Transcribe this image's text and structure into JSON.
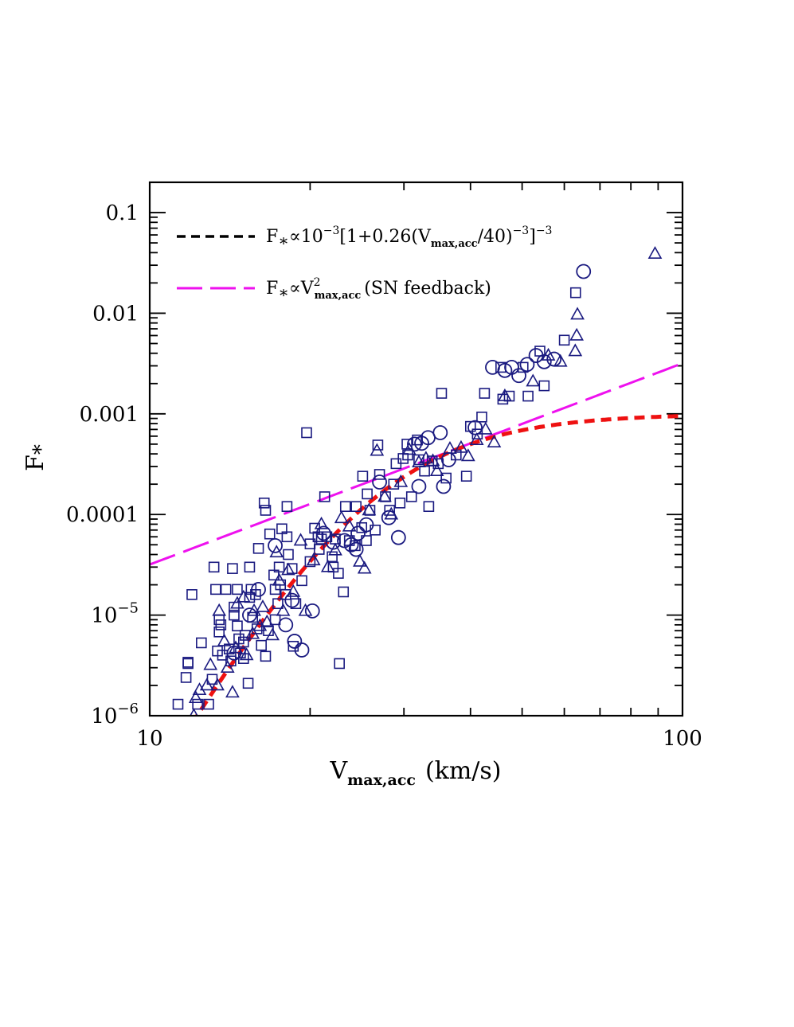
{
  "chart_data": {
    "type": "scatter",
    "title": "",
    "xlabel": {
      "main": "V",
      "sub": "max,acc",
      "units": "(km/s)"
    },
    "ylabel": {
      "main": "F",
      "sub": "*"
    },
    "x_scale": "log",
    "y_scale": "log",
    "xlim": [
      10,
      100
    ],
    "ylim": [
      1e-06,
      0.2
    ],
    "x_tick_labels": [
      {
        "value": 10,
        "label": "10"
      },
      {
        "value": 100,
        "label": "100"
      }
    ],
    "y_tick_labels": [
      {
        "value": 1e-06,
        "base": "10",
        "exp": "−6"
      },
      {
        "value": 1e-05,
        "base": "10",
        "exp": "−5"
      },
      {
        "value": 0.0001,
        "label": "0.0001"
      },
      {
        "value": 0.001,
        "label": "0.001"
      },
      {
        "value": 0.01,
        "label": "0.01"
      },
      {
        "value": 0.1,
        "label": "0.1"
      }
    ],
    "legend_position": "top-left",
    "legend": [
      {
        "style": "black-dashed",
        "parts": [
          "F",
          "∗",
          "∝10",
          "−3",
          "[1+0.26(V",
          "max,acc",
          "/40)",
          "−3",
          "]",
          "−3"
        ]
      },
      {
        "style": "magenta-long-dashed",
        "parts": [
          "F",
          "∗",
          "∝V",
          "2",
          "max,acc",
          "(SN feedback)"
        ]
      }
    ],
    "colors": {
      "points": "#1a1a80",
      "fit_curve": "#ee1111",
      "sn_line": "#ee11ee",
      "axis": "#000000"
    },
    "series": [
      {
        "marker": "square",
        "points": [
          [
            11.3,
            1.3e-06
          ],
          [
            11.7,
            2.4e-06
          ],
          [
            11.8,
            3.4e-06
          ],
          [
            11.8,
            3.3e-06
          ],
          [
            12,
            1.6e-05
          ],
          [
            12.3,
            1.3e-06
          ],
          [
            12.5,
            5.3e-06
          ],
          [
            12.9,
            1.3e-06
          ],
          [
            13.1,
            2.3e-06
          ],
          [
            13.2,
            3e-05
          ],
          [
            13.3,
            1.8e-05
          ],
          [
            13.4,
            4.4e-06
          ],
          [
            13.5,
            9e-06
          ],
          [
            13.5,
            6.8e-06
          ],
          [
            13.6,
            8e-06
          ],
          [
            13.7,
            4e-06
          ],
          [
            13.9,
            1.8e-05
          ],
          [
            14.1,
            4.6e-06
          ],
          [
            14.2,
            3.5e-06
          ],
          [
            14.3,
            2.9e-05
          ],
          [
            14.4,
            1.2e-05
          ],
          [
            14.4,
            1e-05
          ],
          [
            14.6,
            1.8e-05
          ],
          [
            14.6,
            7.8e-06
          ],
          [
            14.7,
            5.8e-06
          ],
          [
            14.8,
            4.2e-06
          ],
          [
            15,
            3.7e-06
          ],
          [
            15,
            5.4e-06
          ],
          [
            15.1,
            6.3e-06
          ],
          [
            15.3,
            2.1e-06
          ],
          [
            15.4,
            3e-05
          ],
          [
            15.4,
            1.5e-05
          ],
          [
            15.5,
            1.8e-05
          ],
          [
            15.6,
            9.5e-06
          ],
          [
            15.8,
            1.6e-05
          ],
          [
            15.9,
            7.3e-06
          ],
          [
            16,
            4.6e-05
          ],
          [
            16.2,
            5e-06
          ],
          [
            16.4,
            0.00013
          ],
          [
            16.5,
            3.9e-06
          ],
          [
            16.5,
            0.00011
          ],
          [
            16.7,
            7e-06
          ],
          [
            16.8,
            6.4e-05
          ],
          [
            17.1,
            2.5e-05
          ],
          [
            17.2,
            1.8e-05
          ],
          [
            17.2,
            9e-06
          ],
          [
            17.4,
            1.3e-05
          ],
          [
            17.5,
            3e-05
          ],
          [
            17.6,
            2e-05
          ],
          [
            17.7,
            7.2e-05
          ],
          [
            18,
            1.6e-05
          ],
          [
            18.1,
            0.00012
          ],
          [
            18.1,
            6e-05
          ],
          [
            18.2,
            4e-05
          ],
          [
            18.5,
            2.9e-05
          ],
          [
            18.6,
            4.9e-06
          ],
          [
            18.8,
            1.3e-05
          ],
          [
            19.3,
            2.2e-05
          ],
          [
            19.7,
            0.00065
          ],
          [
            20,
            5.1e-05
          ],
          [
            20,
            3.4e-05
          ],
          [
            20.4,
            7.3e-05
          ],
          [
            20.7,
            6e-05
          ],
          [
            20.8,
            4.5e-05
          ],
          [
            21,
            5.7e-05
          ],
          [
            21.3,
            0.00015
          ],
          [
            21.5,
            6e-05
          ],
          [
            22,
            3.8e-05
          ],
          [
            22.1,
            3e-05
          ],
          [
            22.3,
            5.7e-05
          ],
          [
            22.6,
            2.6e-05
          ],
          [
            22.7,
            3.3e-06
          ],
          [
            23.1,
            1.7e-05
          ],
          [
            23.3,
            0.00012
          ],
          [
            23.7,
            5.5e-05
          ],
          [
            24.3,
            4.9e-05
          ],
          [
            24.4,
            0.00012
          ],
          [
            25,
            7.4e-05
          ],
          [
            25.1,
            0.00024
          ],
          [
            25.5,
            5.5e-05
          ],
          [
            25.6,
            0.00016
          ],
          [
            25.9,
            0.00011
          ],
          [
            26.5,
            7e-05
          ],
          [
            26.8,
            0.00049
          ],
          [
            27,
            0.00025
          ],
          [
            27.7,
            0.00015
          ],
          [
            28.2,
            0.00011
          ],
          [
            28.7,
            0.0002
          ],
          [
            29,
            0.00032
          ],
          [
            29.5,
            0.00013
          ],
          [
            29.9,
            0.00036
          ],
          [
            30.4,
            0.0005
          ],
          [
            30.5,
            0.00039
          ],
          [
            31,
            0.00015
          ],
          [
            31.8,
            0.00055
          ],
          [
            32,
            0.00035
          ],
          [
            32.8,
            0.00027
          ],
          [
            33.4,
            0.00012
          ],
          [
            33.9,
            0.00034
          ],
          [
            34.8,
            0.00032
          ],
          [
            35.3,
            0.0016
          ],
          [
            36,
            0.00023
          ],
          [
            37.6,
            0.00039
          ],
          [
            39.3,
            0.00024
          ],
          [
            40,
            0.00075
          ],
          [
            41.2,
            0.00063
          ],
          [
            42,
            0.00093
          ],
          [
            42.5,
            0.0016
          ],
          [
            45.6,
            0.0029
          ],
          [
            46,
            0.0014
          ],
          [
            47.3,
            0.0015
          ],
          [
            50.2,
            0.0029
          ],
          [
            51.3,
            0.0015
          ],
          [
            54,
            0.0042
          ],
          [
            55,
            0.0019
          ],
          [
            60,
            0.0054
          ],
          [
            63,
            0.016
          ]
        ]
      },
      {
        "marker": "triangle",
        "points": [
          [
            12.1,
            1e-06
          ],
          [
            12.2,
            1.5e-06
          ],
          [
            12.4,
            1.8e-06
          ],
          [
            12.8,
            2e-06
          ],
          [
            13,
            3.2e-06
          ],
          [
            13.4,
            2e-06
          ],
          [
            13.5,
            1.1e-05
          ],
          [
            13.8,
            5.5e-06
          ],
          [
            14,
            3e-06
          ],
          [
            14.3,
            1.7e-06
          ],
          [
            14.5,
            4.7e-06
          ],
          [
            14.6,
            1.3e-05
          ],
          [
            15,
            1.5e-05
          ],
          [
            15.2,
            4e-06
          ],
          [
            15.6,
            6.5e-06
          ],
          [
            15.7,
            1.1e-05
          ],
          [
            16.1,
            7.8e-06
          ],
          [
            16.3,
            1.2e-05
          ],
          [
            16.6,
            8.5e-06
          ],
          [
            17,
            6.3e-06
          ],
          [
            17.3,
            4.2e-05
          ],
          [
            17.5,
            2.2e-05
          ],
          [
            17.8,
            1.1e-05
          ],
          [
            18.2,
            2.8e-05
          ],
          [
            18.6,
            1.7e-05
          ],
          [
            19.2,
            5.5e-05
          ],
          [
            19.6,
            1.1e-05
          ],
          [
            20.3,
            3.5e-05
          ],
          [
            21,
            8e-05
          ],
          [
            21.6,
            3e-05
          ],
          [
            22.3,
            4.4e-05
          ],
          [
            22.9,
            9.2e-05
          ],
          [
            23.7,
            7.6e-05
          ],
          [
            24.8,
            3.4e-05
          ],
          [
            25.3,
            2.9e-05
          ],
          [
            25.8,
            0.00011
          ],
          [
            26.7,
            0.00043
          ],
          [
            27.6,
            0.00015
          ],
          [
            28.4,
            0.0001
          ],
          [
            29.6,
            0.00021
          ],
          [
            30.7,
            0.00044
          ],
          [
            32,
            0.00033
          ],
          [
            33,
            0.00036
          ],
          [
            34,
            0.00034
          ],
          [
            34.6,
            0.00027
          ],
          [
            36.6,
            0.00045
          ],
          [
            38.4,
            0.00046
          ],
          [
            39.6,
            0.00038
          ],
          [
            41.1,
            0.00055
          ],
          [
            42.7,
            0.0007
          ],
          [
            44.3,
            0.00052
          ],
          [
            46.4,
            0.0015
          ],
          [
            52.4,
            0.0021
          ],
          [
            56,
            0.0038
          ],
          [
            59,
            0.0033
          ],
          [
            62.9,
            0.0042
          ],
          [
            63.3,
            0.006
          ],
          [
            63.5,
            0.0097
          ],
          [
            88.8,
            0.039
          ]
        ]
      },
      {
        "marker": "circle",
        "points": [
          [
            14.4,
            4.2e-06
          ],
          [
            15.4,
            1e-05
          ],
          [
            16,
            1.8e-05
          ],
          [
            17.2,
            4.9e-05
          ],
          [
            18,
            8e-06
          ],
          [
            18.5,
            1.4e-05
          ],
          [
            18.7,
            5.5e-06
          ],
          [
            19.3,
            4.5e-06
          ],
          [
            20.2,
            1.1e-05
          ],
          [
            21.2,
            6.5e-05
          ],
          [
            22.1,
            5.3e-05
          ],
          [
            23.2,
            5.5e-05
          ],
          [
            23.9,
            5e-05
          ],
          [
            24.4,
            4.5e-05
          ],
          [
            24.6,
            6.5e-05
          ],
          [
            25.5,
            7.9e-05
          ],
          [
            27,
            0.00021
          ],
          [
            28.1,
            9.3e-05
          ],
          [
            29.3,
            5.9e-05
          ],
          [
            31.4,
            0.0005
          ],
          [
            32,
            0.00019
          ],
          [
            32.4,
            0.00051
          ],
          [
            33.3,
            0.00058
          ],
          [
            35.1,
            0.00065
          ],
          [
            35.6,
            0.00019
          ],
          [
            36.4,
            0.00035
          ],
          [
            40.8,
            0.00073
          ],
          [
            44,
            0.0029
          ],
          [
            46.4,
            0.0027
          ],
          [
            47.8,
            0.0029
          ],
          [
            49.3,
            0.0024
          ],
          [
            51.1,
            0.0031
          ],
          [
            53.1,
            0.0038
          ],
          [
            55,
            0.0033
          ],
          [
            57.4,
            0.0035
          ],
          [
            65.2,
            0.026
          ]
        ]
      }
    ]
  }
}
